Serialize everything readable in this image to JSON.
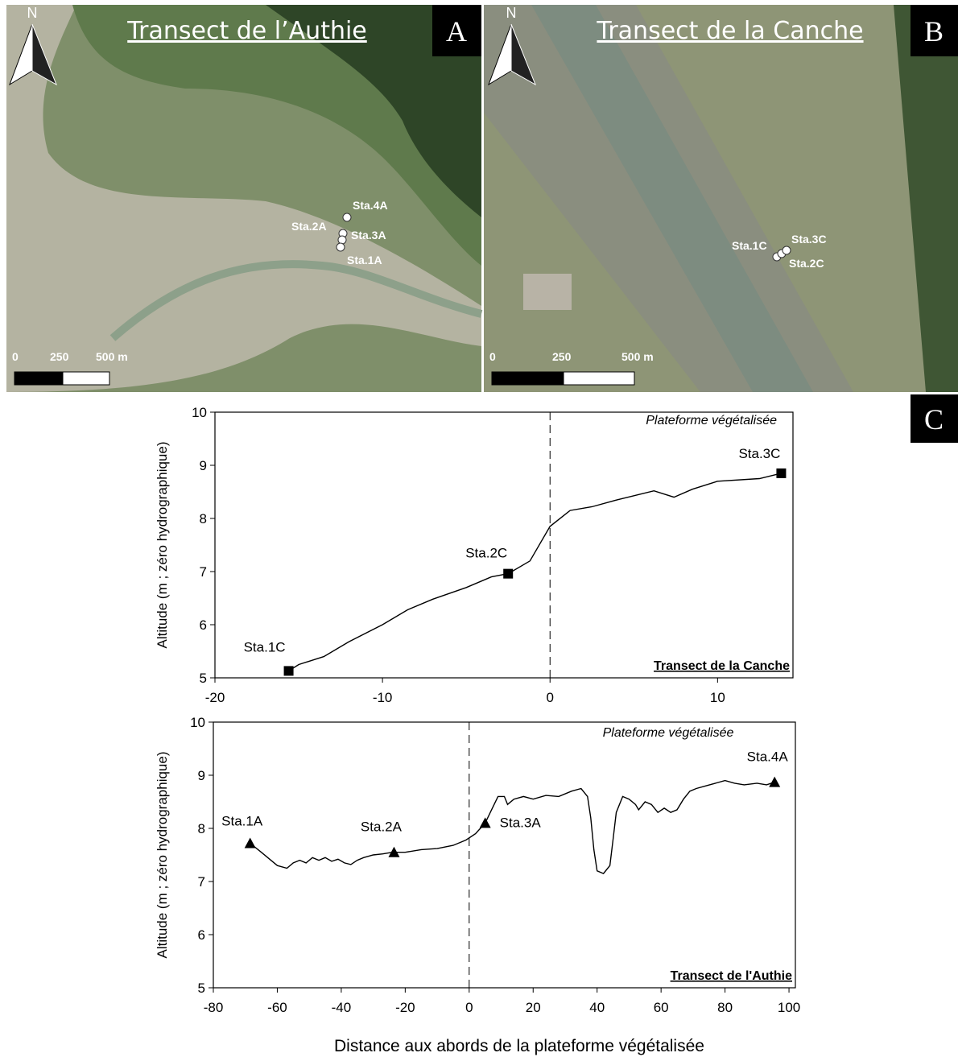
{
  "maps": [
    {
      "title": "Transect de l’Authie",
      "letter": "A",
      "north": "N",
      "stations": [
        "Sta.4A",
        "Sta.2A",
        "Sta.3A",
        "Sta.1A"
      ],
      "scale": [
        "0",
        "250",
        "500 m"
      ]
    },
    {
      "title": "Transect de la Canche",
      "letter": "B",
      "north": "N",
      "stations": [
        "Sta.1C",
        "Sta.3C",
        "Sta.2C"
      ],
      "scale": [
        "0",
        "250",
        "500 m"
      ]
    }
  ],
  "panel_c": "C",
  "chart_data": [
    {
      "type": "line",
      "ylabel": "Altitude (m ; zéro hydrographique)",
      "annotation": "Plateforme végétalisée",
      "transect_label": "Transect de la Canche",
      "xlim": [
        -20,
        14.5
      ],
      "xticks": [
        -20,
        -10,
        0,
        10
      ],
      "ylim": [
        5,
        10
      ],
      "yticks": [
        5,
        6,
        7,
        8,
        9,
        10
      ],
      "reference_x": 0,
      "x": [
        -15.6,
        -15,
        -13.5,
        -12,
        -10,
        -8.5,
        -7,
        -5,
        -3.5,
        -2.5,
        -1.2,
        0,
        1.2,
        2.5,
        4,
        6.2,
        7.4,
        8.5,
        10,
        12.5,
        13.8
      ],
      "series": [
        {
          "color": "#000000",
          "values": [
            5.13,
            5.25,
            5.4,
            5.68,
            6.0,
            6.28,
            6.48,
            6.7,
            6.9,
            6.96,
            7.2,
            7.85,
            8.15,
            8.22,
            8.35,
            8.52,
            8.4,
            8.55,
            8.7,
            8.75,
            8.85
          ]
        }
      ],
      "stations": {
        "marker": "square",
        "labels": [
          "Sta.1C",
          "Sta.2C",
          "Sta.3C"
        ],
        "x": [
          -15.6,
          -2.5,
          13.8
        ],
        "y": [
          5.13,
          6.96,
          8.85
        ]
      }
    },
    {
      "type": "line",
      "ylabel": "Altitude (m ; zéro hydrographique)",
      "xlabel": "Distance aux abords de la plateforme végétalisée",
      "annotation": "Plateforme végétalisée",
      "transect_label": "Transect de l'Authie",
      "xlim": [
        -80,
        102
      ],
      "xticks": [
        -80,
        -60,
        -40,
        -20,
        0,
        20,
        40,
        60,
        80,
        100
      ],
      "ylim": [
        5,
        10
      ],
      "yticks": [
        5,
        6,
        7,
        8,
        9,
        10
      ],
      "reference_x": 0,
      "x": [
        -68.5,
        -65,
        -62,
        -60,
        -57,
        -55,
        -53,
        -51,
        -49,
        -47,
        -45,
        -43,
        -41,
        -39,
        -37,
        -35,
        -33,
        -30,
        -27,
        -24,
        -20,
        -15,
        -10,
        -5,
        -1,
        2,
        5,
        7,
        9,
        11,
        12,
        14,
        17,
        20,
        24,
        28,
        32,
        35,
        37,
        38,
        39,
        40,
        42,
        44,
        45,
        46,
        48,
        50,
        52,
        53,
        55,
        57,
        59,
        61,
        63,
        65,
        67,
        69,
        71,
        74,
        77,
        80,
        83,
        86,
        90,
        93,
        95.5
      ],
      "series": [
        {
          "color": "#000000",
          "values": [
            7.72,
            7.55,
            7.4,
            7.3,
            7.25,
            7.35,
            7.4,
            7.35,
            7.45,
            7.4,
            7.45,
            7.38,
            7.42,
            7.35,
            7.32,
            7.4,
            7.45,
            7.5,
            7.52,
            7.55,
            7.55,
            7.6,
            7.62,
            7.68,
            7.78,
            7.9,
            8.1,
            8.35,
            8.6,
            8.6,
            8.45,
            8.55,
            8.6,
            8.55,
            8.62,
            8.6,
            8.7,
            8.75,
            8.6,
            8.2,
            7.6,
            7.2,
            7.15,
            7.3,
            7.8,
            8.3,
            8.6,
            8.55,
            8.45,
            8.35,
            8.5,
            8.45,
            8.3,
            8.38,
            8.3,
            8.35,
            8.55,
            8.7,
            8.75,
            8.8,
            8.85,
            8.9,
            8.85,
            8.82,
            8.85,
            8.82,
            8.87
          ]
        }
      ],
      "stations": {
        "marker": "triangle",
        "labels": [
          "Sta.1A",
          "Sta.2A",
          "Sta.3A",
          "Sta.4A"
        ],
        "x": [
          -68.5,
          -23.5,
          5,
          95.5
        ],
        "y": [
          7.72,
          7.55,
          8.1,
          8.87
        ]
      }
    }
  ]
}
